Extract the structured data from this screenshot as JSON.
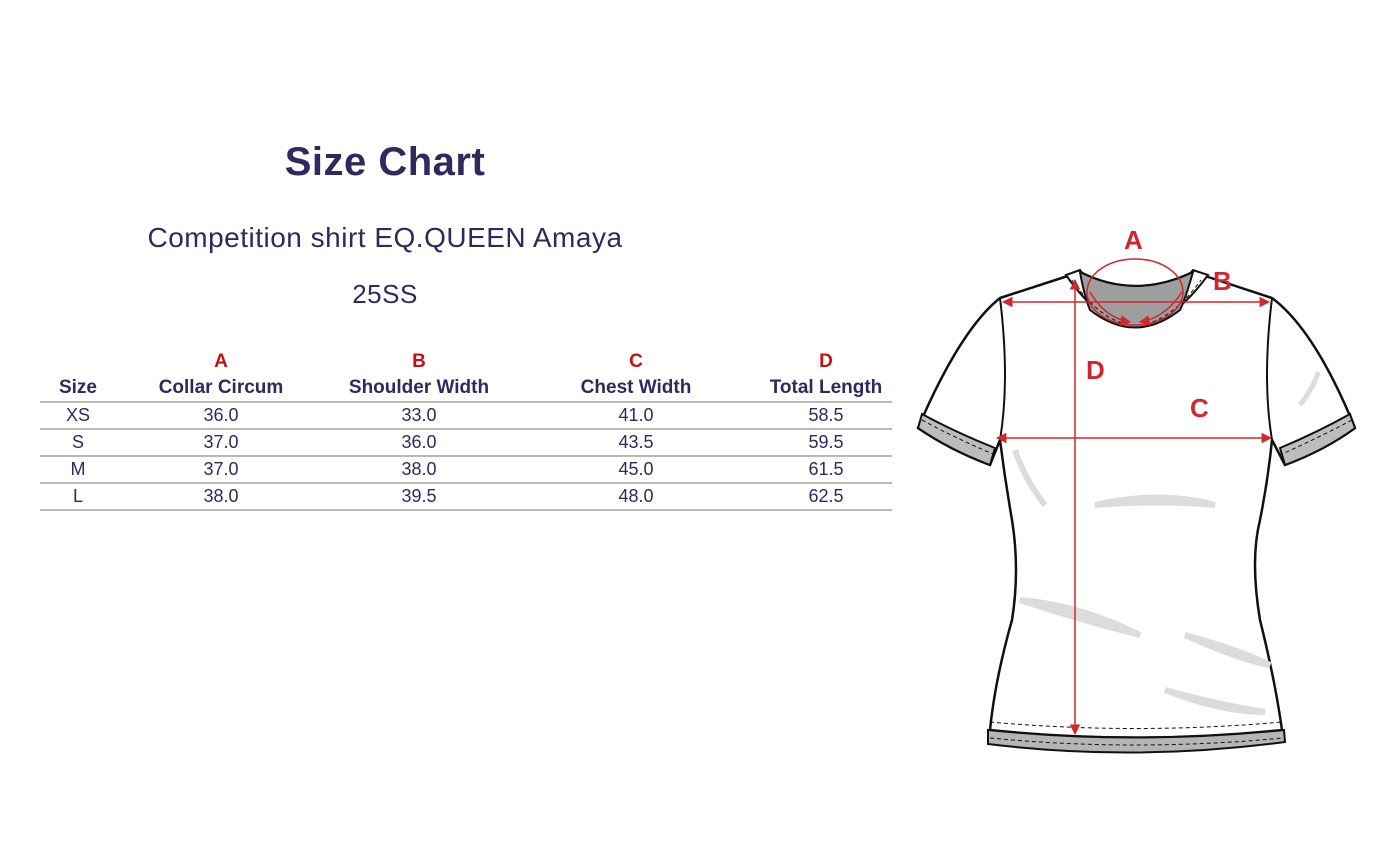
{
  "header": {
    "title": "Size Chart",
    "product": "Competition shirt EQ.QUEEN Amaya",
    "season": "25SS"
  },
  "table": {
    "letters": [
      "",
      "A",
      "B",
      "C",
      "D"
    ],
    "columns": [
      "Size",
      "Collar Circum",
      "Shoulder Width",
      "Chest Width",
      "Total Length"
    ],
    "rows": [
      [
        "XS",
        "36.0",
        "33.0",
        "41.0",
        "58.5"
      ],
      [
        "S",
        "37.0",
        "36.0",
        "43.5",
        "59.5"
      ],
      [
        "M",
        "37.0",
        "38.0",
        "45.0",
        "61.5"
      ],
      [
        "L",
        "38.0",
        "39.5",
        "48.0",
        "62.5"
      ]
    ]
  },
  "diagram": {
    "labels": {
      "a": "A",
      "b": "B",
      "c": "C",
      "d": "D"
    },
    "colors": {
      "measure": "#d0262e",
      "outline": "#111111",
      "shade": "#9e9e9e"
    }
  },
  "colors": {
    "text": "#2f2a5e",
    "accent": "#c0111b",
    "rule": "#b9b9b9"
  }
}
